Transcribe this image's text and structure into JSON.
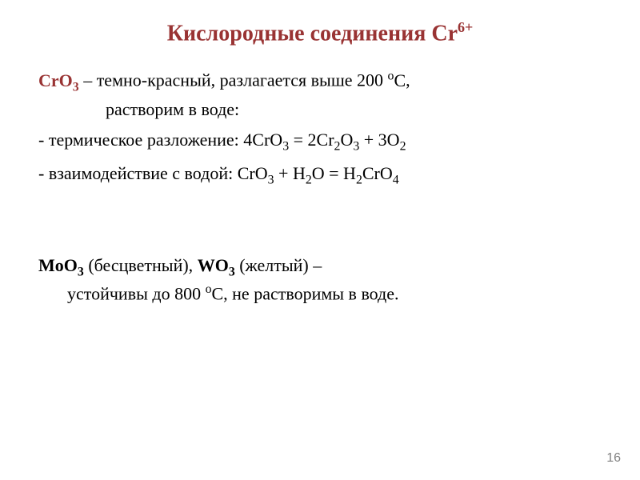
{
  "title_html": "Кислородные соединения Cr<sup>6+</sup>",
  "title_color": "#993333",
  "title_fontsize": 28,
  "body_fontsize": 22,
  "text_color": "#000000",
  "formula_color": "#993333",
  "background_color": "#ffffff",
  "compound": {
    "formula_html": "CrO<sub>3</sub>",
    "desc_head": " – темно-красный, разлагается выше 200 ",
    "temp_unit_html": "<sup>о</sup>С",
    "desc_head_end": ",",
    "desc_sub": "растворим в воде:",
    "details": [
      "- термическое разложение: 4CrO<sub>3</sub> = 2Cr<sub>2</sub>O<sub>3</sub> + 3O<sub>2</sub>",
      "- взаимодействие с водой: CrO<sub>3</sub> + H<sub>2</sub>O = H<sub>2</sub>CrO<sub>4</sub>"
    ]
  },
  "moo": {
    "head_html": "<span class=\"bold\">MoO<sub>3</sub></span> (бесцветный), <span class=\"bold\">WO<sub>3</sub></span> (желтый) –",
    "sub_html": "устойчивы до 800 <sup>о</sup>С, не растворимы в воде."
  },
  "page_number": "16",
  "page_number_color": "#808080"
}
